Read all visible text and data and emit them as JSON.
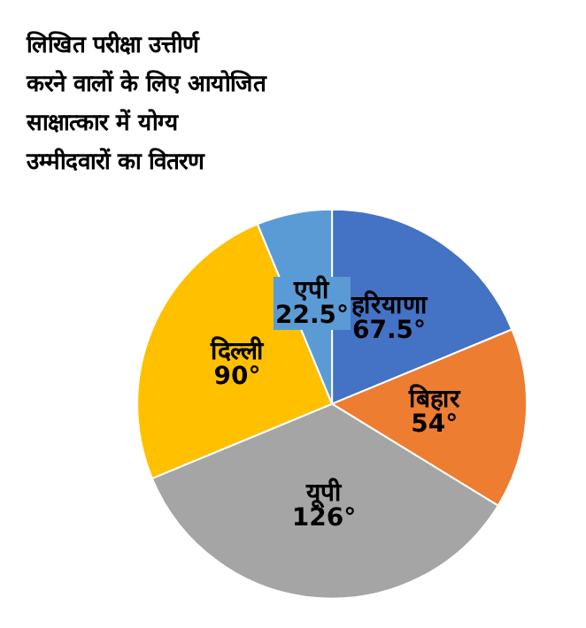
{
  "chart_data": {
    "type": "pie",
    "title": "लिखित परीक्षा उत्तीर्ण करने वालों के लिए आयोजित साक्षात्कार में योग्य उम्मीदवारों का वितरण",
    "categories": [
      "हरियाणा",
      "बिहार",
      "यूपी",
      "दिल्ली",
      "एपी"
    ],
    "values": [
      67.5,
      54,
      126,
      90,
      22.5
    ],
    "value_labels": [
      "67.5°",
      "54°",
      "126°",
      "90°",
      "22.5°"
    ],
    "colors": [
      "#4472c4",
      "#ed7d31",
      "#a5a5a5",
      "#ffc000",
      "#5b9bd5"
    ],
    "legend": false
  }
}
